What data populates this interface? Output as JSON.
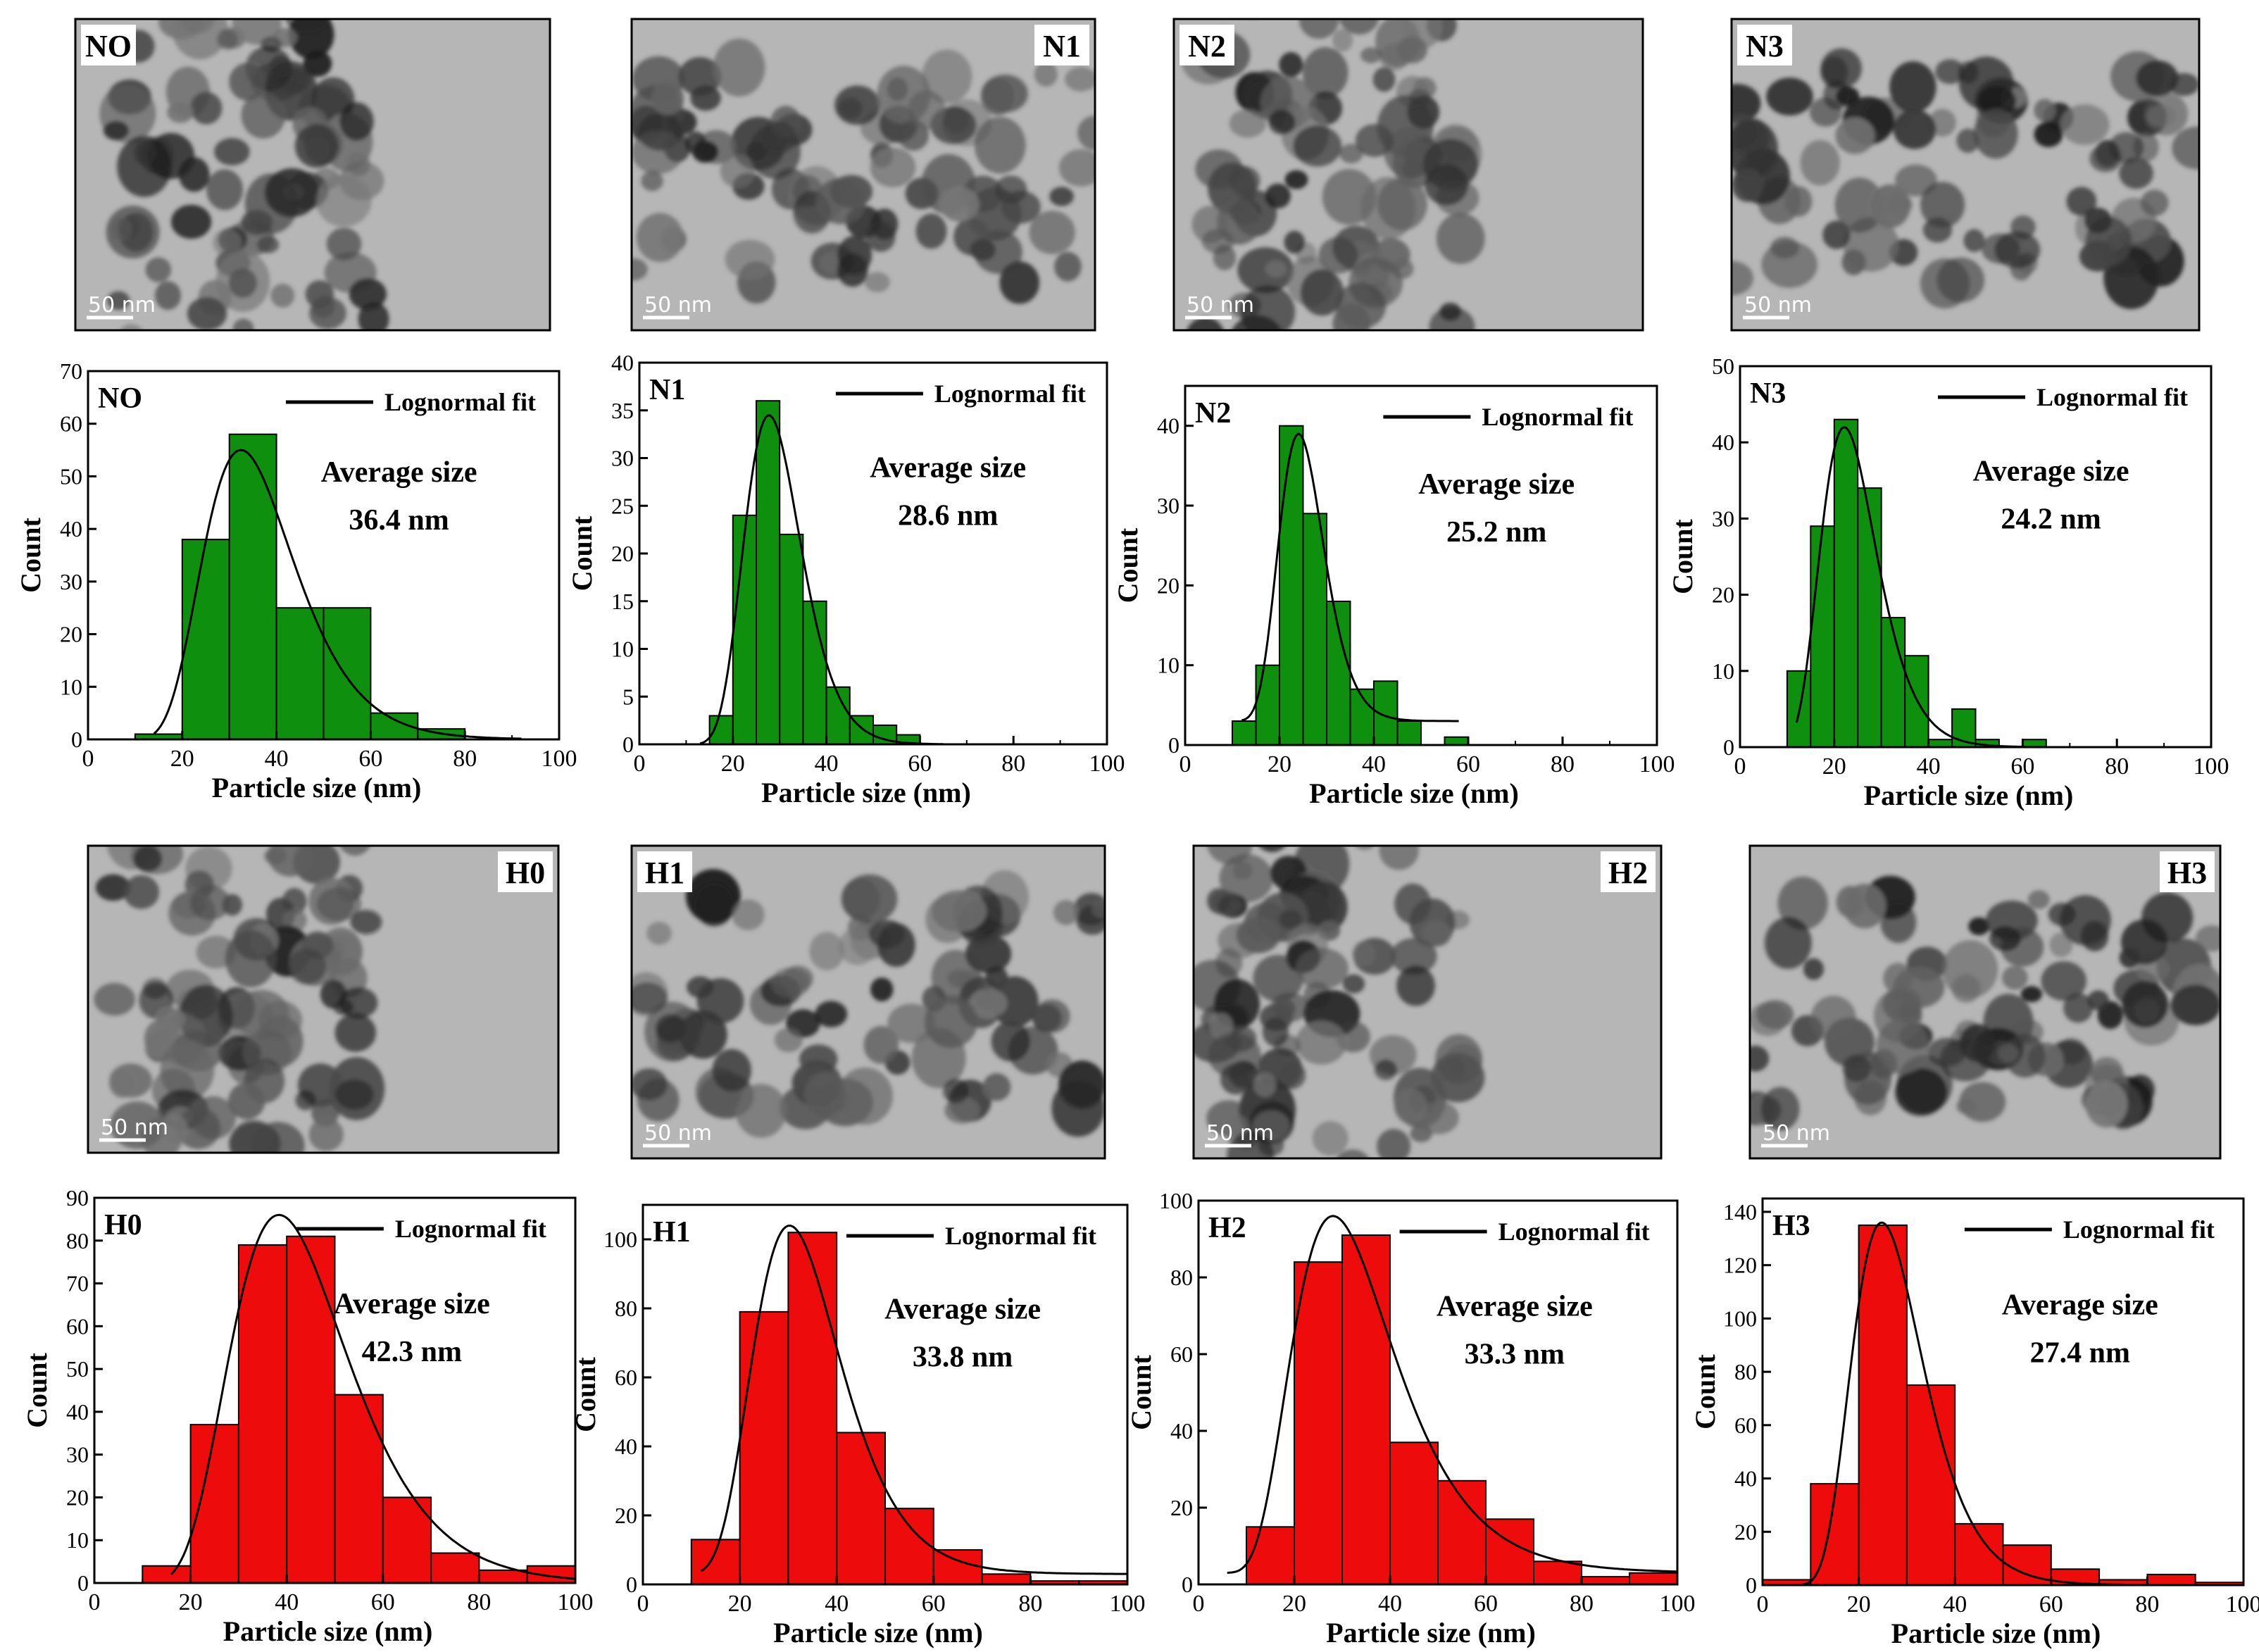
{
  "scale_bar_text": "50 nm",
  "legend_label": "Lognormal fit",
  "average_label": "Average size",
  "x_axis_label": "Particle size (nm)",
  "y_axis_label": "Count",
  "colors": {
    "green_bar": "#0e8f0e",
    "red_bar": "#ee0b0b",
    "fit_line": "#000000",
    "tem_bg": "#b6b6b6",
    "tem_dark": "#2a2a2a"
  },
  "tem_images": [
    {
      "label": "NO",
      "label_side": "left"
    },
    {
      "label": "N1",
      "label_side": "right"
    },
    {
      "label": "N2",
      "label_side": "left"
    },
    {
      "label": "N3",
      "label_side": "left"
    },
    {
      "label": "H0",
      "label_side": "right"
    },
    {
      "label": "H1",
      "label_side": "left"
    },
    {
      "label": "H2",
      "label_side": "right"
    },
    {
      "label": "H3",
      "label_side": "right"
    }
  ],
  "chart_data": [
    {
      "type": "bar",
      "title": "NO",
      "color": "green",
      "xlim": [
        0,
        100
      ],
      "ylim": [
        0,
        70
      ],
      "xticks": [
        0,
        20,
        40,
        60,
        80,
        100
      ],
      "yticks": [
        0,
        10,
        20,
        30,
        40,
        50,
        60,
        70
      ],
      "bins": [
        [
          10,
          20,
          1
        ],
        [
          20,
          30,
          38
        ],
        [
          30,
          40,
          58
        ],
        [
          40,
          50,
          25
        ],
        [
          50,
          60,
          25
        ],
        [
          60,
          70,
          5
        ],
        [
          70,
          80,
          2
        ],
        [
          80,
          90,
          0
        ]
      ],
      "fit": {
        "mu": 3.57,
        "sigma": 0.3,
        "peak": 55,
        "x_range": [
          14,
          92
        ]
      },
      "average_size": "36.4 nm"
    },
    {
      "type": "bar",
      "title": "N1",
      "color": "green",
      "xlim": [
        0,
        100
      ],
      "ylim": [
        0,
        40
      ],
      "xticks": [
        0,
        20,
        40,
        60,
        80,
        100
      ],
      "yticks": [
        0,
        5,
        10,
        15,
        20,
        25,
        30,
        35,
        40
      ],
      "bins": [
        [
          15,
          20,
          3
        ],
        [
          20,
          25,
          24
        ],
        [
          25,
          30,
          36
        ],
        [
          30,
          35,
          22
        ],
        [
          35,
          40,
          15
        ],
        [
          40,
          45,
          6
        ],
        [
          45,
          50,
          3
        ],
        [
          50,
          55,
          2
        ],
        [
          55,
          60,
          1
        ]
      ],
      "fit": {
        "mu": 3.37,
        "sigma": 0.22,
        "peak": 34.5,
        "x_range": [
          13,
          65
        ]
      },
      "average_size": "28.6 nm"
    },
    {
      "type": "bar",
      "title": "N2",
      "color": "green",
      "xlim": [
        0,
        100
      ],
      "ylim": [
        0,
        45
      ],
      "xticks": [
        0,
        20,
        40,
        60,
        80,
        100
      ],
      "yticks": [
        0,
        10,
        20,
        30,
        40
      ],
      "bins": [
        [
          10,
          15,
          3
        ],
        [
          15,
          20,
          10
        ],
        [
          20,
          25,
          40
        ],
        [
          25,
          30,
          29
        ],
        [
          30,
          35,
          18
        ],
        [
          35,
          40,
          7
        ],
        [
          40,
          45,
          8
        ],
        [
          45,
          50,
          3
        ],
        [
          50,
          55,
          0
        ],
        [
          55,
          60,
          1
        ]
      ],
      "fit": {
        "mu": 3.22,
        "sigma": 0.2,
        "peak": 39,
        "x_range": [
          12,
          58
        ],
        "baseline": 3
      },
      "average_size": "25.2 nm"
    },
    {
      "type": "bar",
      "title": "N3",
      "color": "green",
      "xlim": [
        0,
        100
      ],
      "ylim": [
        0,
        50
      ],
      "xticks": [
        0,
        20,
        40,
        60,
        80,
        100
      ],
      "yticks": [
        0,
        10,
        20,
        30,
        40,
        50
      ],
      "bins": [
        [
          10,
          15,
          10
        ],
        [
          15,
          20,
          29
        ],
        [
          20,
          25,
          43
        ],
        [
          25,
          30,
          34
        ],
        [
          30,
          35,
          17
        ],
        [
          35,
          40,
          12
        ],
        [
          40,
          45,
          1
        ],
        [
          45,
          50,
          5
        ],
        [
          50,
          55,
          1
        ],
        [
          55,
          60,
          0
        ],
        [
          60,
          65,
          1
        ]
      ],
      "fit": {
        "mu": 3.17,
        "sigma": 0.27,
        "peak": 42,
        "x_range": [
          12,
          65
        ]
      },
      "average_size": "24.2 nm"
    },
    {
      "type": "bar",
      "title": "H0",
      "color": "red",
      "xlim": [
        0,
        100
      ],
      "ylim": [
        0,
        90
      ],
      "xticks": [
        0,
        20,
        40,
        60,
        80,
        100
      ],
      "yticks": [
        0,
        10,
        20,
        30,
        40,
        50,
        60,
        70,
        80,
        90
      ],
      "bins": [
        [
          10,
          20,
          4
        ],
        [
          20,
          30,
          37
        ],
        [
          30,
          40,
          79
        ],
        [
          40,
          50,
          81
        ],
        [
          50,
          60,
          44
        ],
        [
          60,
          70,
          20
        ],
        [
          70,
          80,
          7
        ],
        [
          80,
          90,
          3
        ],
        [
          90,
          100,
          4
        ]
      ],
      "fit": {
        "mu": 3.75,
        "sigma": 0.32,
        "peak": 86,
        "x_range": [
          16,
          100
        ]
      },
      "average_size": "42.3 nm"
    },
    {
      "type": "bar",
      "title": "H1",
      "color": "red",
      "xlim": [
        0,
        100
      ],
      "ylim": [
        0,
        110
      ],
      "xticks": [
        0,
        20,
        40,
        60,
        80,
        100
      ],
      "yticks": [
        0,
        20,
        40,
        60,
        80,
        100
      ],
      "bins": [
        [
          10,
          20,
          13
        ],
        [
          20,
          30,
          79
        ],
        [
          30,
          40,
          102
        ],
        [
          40,
          50,
          44
        ],
        [
          50,
          60,
          22
        ],
        [
          60,
          70,
          10
        ],
        [
          70,
          80,
          3
        ],
        [
          80,
          90,
          1
        ],
        [
          90,
          100,
          1
        ]
      ],
      "fit": {
        "mu": 3.5,
        "sigma": 0.3,
        "peak": 104,
        "x_range": [
          12,
          100
        ],
        "baseline": 3
      },
      "average_size": "33.8 nm"
    },
    {
      "type": "bar",
      "title": "H2",
      "color": "red",
      "xlim": [
        0,
        100
      ],
      "ylim": [
        0,
        100
      ],
      "xticks": [
        0,
        20,
        40,
        60,
        80,
        100
      ],
      "yticks": [
        0,
        20,
        40,
        60,
        80,
        100
      ],
      "bins": [
        [
          10,
          20,
          15
        ],
        [
          20,
          30,
          84
        ],
        [
          30,
          40,
          91
        ],
        [
          40,
          50,
          37
        ],
        [
          50,
          60,
          27
        ],
        [
          60,
          70,
          17
        ],
        [
          70,
          80,
          6
        ],
        [
          80,
          90,
          2
        ],
        [
          90,
          100,
          3
        ]
      ],
      "fit": {
        "mu": 3.48,
        "sigma": 0.38,
        "peak": 96,
        "x_range": [
          6,
          100
        ],
        "baseline": 3
      },
      "average_size": "33.3 nm"
    },
    {
      "type": "bar",
      "title": "H3",
      "color": "red",
      "xlim": [
        0,
        100
      ],
      "ylim": [
        0,
        145
      ],
      "xticks": [
        0,
        20,
        40,
        60,
        80,
        100
      ],
      "yticks": [
        0,
        20,
        40,
        60,
        80,
        100,
        120,
        140
      ],
      "bins": [
        [
          0,
          10,
          2
        ],
        [
          10,
          20,
          38
        ],
        [
          20,
          30,
          135
        ],
        [
          30,
          40,
          75
        ],
        [
          40,
          50,
          23
        ],
        [
          50,
          60,
          15
        ],
        [
          60,
          70,
          6
        ],
        [
          70,
          80,
          2
        ],
        [
          80,
          90,
          4
        ],
        [
          90,
          100,
          1
        ]
      ],
      "fit": {
        "mu": 3.3,
        "sigma": 0.3,
        "peak": 136,
        "x_range": [
          8,
          100
        ]
      },
      "average_size": "27.4 nm"
    }
  ]
}
